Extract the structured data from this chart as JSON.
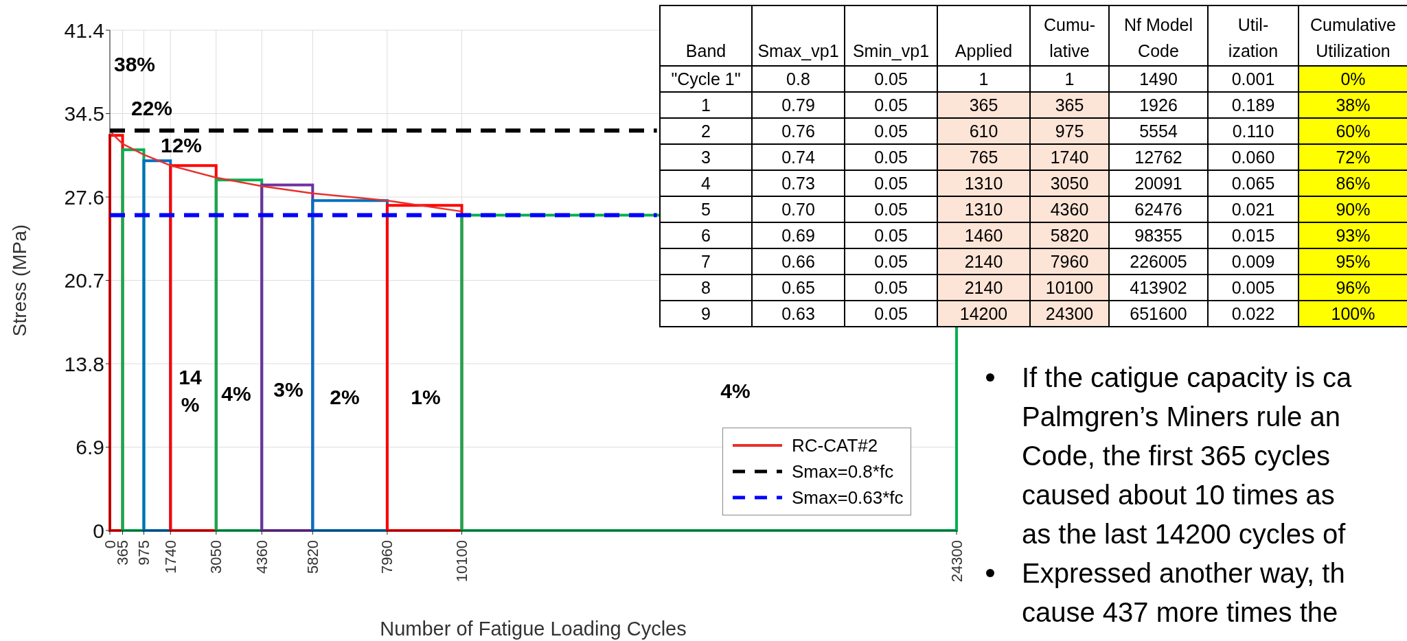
{
  "chart_data": [
    {
      "type": "histogram",
      "xlabel": "Number of Fatigue Loading Cycles",
      "ylabel": "Stress (MPa)",
      "bins": [
        0,
        365,
        975,
        1740,
        3050,
        4360,
        5820,
        7960,
        10100,
        24300
      ],
      "values": [
        32.7,
        31.5,
        30.6,
        30.2,
        29.0,
        28.6,
        27.3,
        26.9,
        26.1
      ],
      "colors": [
        "#ff0000",
        "#00b050",
        "#0070c0",
        "#ff0000",
        "#00b050",
        "#7030a0",
        "#0070c0",
        "#ff0000",
        "#00b050"
      ],
      "series": [
        {
          "name": "RC-CAT#2",
          "type": "line",
          "color": "#e8302c",
          "line_style": "solid",
          "x": [
            0,
            150,
            365,
            975,
            1740,
            3050,
            4360,
            5820,
            7960,
            10100
          ],
          "values": [
            33.1,
            32.6,
            32.0,
            31.1,
            30.2,
            29.2,
            28.5,
            27.9,
            27.3,
            26.4
          ]
        },
        {
          "name": "Smax=0.8*fc",
          "type": "line",
          "color": "#000000",
          "line_style": "dashed",
          "x": [
            0,
            15700
          ],
          "values": [
            33.1,
            33.1
          ]
        },
        {
          "name": "Smax=0.63*fc",
          "type": "line",
          "color": "#0000ff",
          "line_style": "dashed",
          "x": [
            0,
            15700
          ],
          "values": [
            26.1,
            26.1
          ]
        }
      ],
      "xlim": [
        0,
        24300
      ],
      "xticks": [
        0,
        365,
        975,
        1740,
        3050,
        4360,
        5820,
        7960,
        10100,
        24300
      ],
      "ylim": [
        0,
        41.4
      ],
      "yticks": [
        0,
        6.9,
        13.8,
        20.7,
        27.6,
        34.5,
        41.4
      ],
      "grid": true,
      "legend": "bottom right",
      "annotations": [
        "38%",
        "22%",
        "12%",
        "14 %",
        "4%",
        "3%",
        "2%",
        "1%",
        "4%"
      ]
    },
    {
      "type": "heatmap",
      "ylabel": "Band",
      "categories": [
        "Smax_vp1",
        "Smin_vp1",
        "Applied",
        "Cumu- lative",
        "Nf Model Code",
        "Util- ization",
        "Cumulative Utilization"
      ],
      "y_categories": [
        "\"Cycle 1\"",
        "1",
        "2",
        "3",
        "4",
        "5",
        "6",
        "7",
        "8",
        "9"
      ],
      "cells": [
        [
          0.8,
          0.05,
          1,
          1,
          1490,
          0.001,
          0
        ],
        [
          0.79,
          0.05,
          365,
          365,
          1926,
          0.189,
          38
        ],
        [
          0.76,
          0.05,
          610,
          975,
          5554,
          0.11,
          60
        ],
        [
          0.74,
          0.05,
          765,
          1740,
          12762,
          0.06,
          72
        ],
        [
          0.73,
          0.05,
          1310,
          3050,
          20091,
          0.065,
          86
        ],
        [
          0.7,
          0.05,
          1310,
          4360,
          62476,
          0.021,
          90
        ],
        [
          0.69,
          0.05,
          1460,
          5820,
          98355,
          0.015,
          93
        ],
        [
          0.66,
          0.05,
          2140,
          7960,
          226005,
          0.009,
          95
        ],
        [
          0.65,
          0.05,
          2140,
          10100,
          413902,
          0.005,
          96
        ],
        [
          0.63,
          0.05,
          14200,
          24300,
          651600,
          0.022,
          100
        ]
      ],
      "cell_labels": [
        [
          "0.8",
          "0.05",
          "1",
          "1",
          "1490",
          "0.001",
          "0%"
        ],
        [
          "0.79",
          "0.05",
          "365",
          "365",
          "1926",
          "0.189",
          "38%"
        ],
        [
          "0.76",
          "0.05",
          "610",
          "975",
          "5554",
          "0.110",
          "60%"
        ],
        [
          "0.74",
          "0.05",
          "765",
          "1740",
          "12762",
          "0.060",
          "72%"
        ],
        [
          "0.73",
          "0.05",
          "1310",
          "3050",
          "20091",
          "0.065",
          "86%"
        ],
        [
          "0.70",
          "0.05",
          "1310",
          "4360",
          "62476",
          "0.021",
          "90%"
        ],
        [
          "0.69",
          "0.05",
          "1460",
          "5820",
          "98355",
          "0.015",
          "93%"
        ],
        [
          "0.66",
          "0.05",
          "2140",
          "7960",
          "226005",
          "0.009",
          "95%"
        ],
        [
          "0.65",
          "0.05",
          "2140",
          "10100",
          "413902",
          "0.005",
          "96%"
        ],
        [
          "0.63",
          "0.05",
          "14200",
          "24300",
          "651600",
          "0.022",
          "100%"
        ]
      ],
      "colors": [
        [
          null,
          null,
          null,
          null,
          null,
          null,
          "#ffff00"
        ],
        [
          null,
          null,
          "#fce4d6",
          "#fce4d6",
          null,
          null,
          "#ffff00"
        ],
        [
          null,
          null,
          "#fce4d6",
          "#fce4d6",
          null,
          null,
          "#ffff00"
        ],
        [
          null,
          null,
          "#fce4d6",
          "#fce4d6",
          null,
          null,
          "#ffff00"
        ],
        [
          null,
          null,
          "#fce4d6",
          "#fce4d6",
          null,
          null,
          "#ffff00"
        ],
        [
          null,
          null,
          "#fce4d6",
          "#fce4d6",
          null,
          null,
          "#ffff00"
        ],
        [
          null,
          null,
          "#fce4d6",
          "#fce4d6",
          null,
          null,
          "#ffff00"
        ],
        [
          null,
          null,
          "#fce4d6",
          "#fce4d6",
          null,
          null,
          "#ffff00"
        ],
        [
          null,
          null,
          "#fce4d6",
          "#fce4d6",
          null,
          null,
          "#ffff00"
        ],
        [
          null,
          null,
          "#fce4d6",
          "#fce4d6",
          null,
          null,
          "#ffff00"
        ]
      ]
    },
    {
      "type": "other",
      "annotations": [
        "If the catigue capacity is ca\nPalmgren’s Miners rule an\nCode, the first 365 cycles\ncaused about 10 times as\nas the last 14200 cycles of",
        "Expressed another way, th\ncause 437 more times the"
      ]
    }
  ]
}
